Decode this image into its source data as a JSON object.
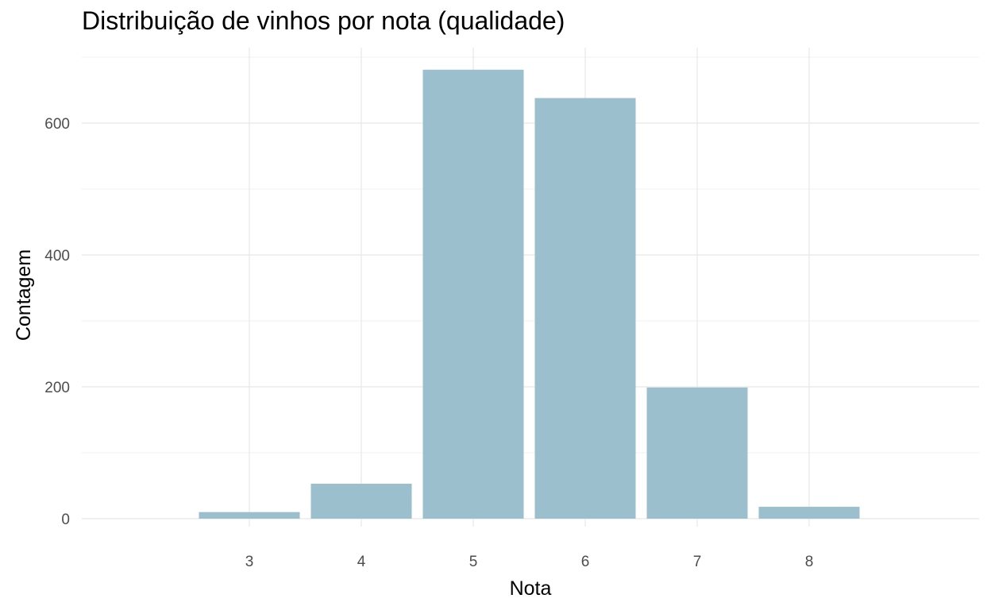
{
  "chart_data": {
    "type": "bar",
    "title": "Distribuição de vinhos por nota (qualidade)",
    "xlabel": "Nota",
    "ylabel": "Contagem",
    "categories": [
      "3",
      "4",
      "5",
      "6",
      "7",
      "8"
    ],
    "values": [
      10,
      53,
      681,
      638,
      199,
      18
    ],
    "x_ticks": [
      3,
      4,
      5,
      6,
      7,
      8
    ],
    "y_ticks": [
      0,
      200,
      400,
      600
    ],
    "ylim": [
      0,
      700
    ],
    "xlim": [
      1.5,
      9.5
    ],
    "grid": true,
    "legend": "none",
    "bar_color": "#9bbfcd"
  }
}
